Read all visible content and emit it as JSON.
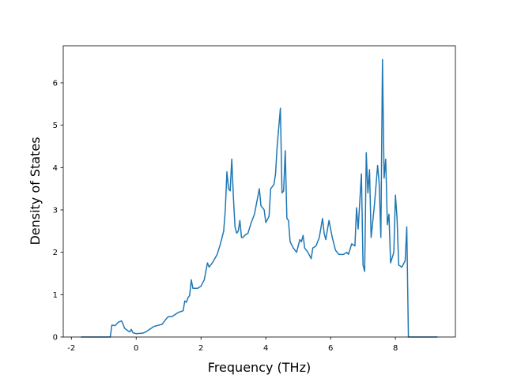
{
  "chart_data": {
    "type": "line",
    "x_label": "Frequency (THz)",
    "y_label": "Density of States",
    "x": [
      -1.7,
      -0.8,
      -0.75,
      -0.65,
      -0.55,
      -0.45,
      -0.35,
      -0.2,
      -0.15,
      -0.1,
      0,
      0.2,
      0.3,
      0.45,
      0.55,
      0.8,
      0.95,
      1.0,
      1.1,
      1.3,
      1.45,
      1.5,
      1.55,
      1.6,
      1.65,
      1.7,
      1.75,
      1.9,
      2.0,
      2.1,
      2.2,
      2.25,
      2.35,
      2.5,
      2.6,
      2.7,
      2.75,
      2.8,
      2.85,
      2.9,
      2.95,
      3.0,
      3.05,
      3.1,
      3.15,
      3.2,
      3.25,
      3.3,
      3.35,
      3.45,
      3.55,
      3.65,
      3.8,
      3.85,
      3.95,
      4.0,
      4.1,
      4.15,
      4.25,
      4.3,
      4.35,
      4.45,
      4.5,
      4.55,
      4.6,
      4.65,
      4.7,
      4.75,
      4.85,
      4.95,
      5.05,
      5.1,
      5.15,
      5.2,
      5.3,
      5.4,
      5.45,
      5.55,
      5.65,
      5.75,
      5.8,
      5.85,
      5.95,
      6.05,
      6.15,
      6.25,
      6.4,
      6.5,
      6.55,
      6.65,
      6.75,
      6.8,
      6.85,
      6.95,
      7.0,
      7.05,
      7.1,
      7.15,
      7.2,
      7.25,
      7.35,
      7.45,
      7.5,
      7.55,
      7.6,
      7.65,
      7.7,
      7.75,
      7.8,
      7.85,
      7.95,
      8.0,
      8.05,
      8.1,
      8.2,
      8.3,
      8.35,
      8.4,
      9.3
    ],
    "series": [
      {
        "color": "#1f77b4",
        "values": [
          0,
          0,
          0.28,
          0.27,
          0.35,
          0.38,
          0.2,
          0.12,
          0.18,
          0.1,
          0.08,
          0.09,
          0.12,
          0.2,
          0.25,
          0.3,
          0.45,
          0.48,
          0.48,
          0.58,
          0.62,
          0.85,
          0.82,
          0.93,
          0.98,
          1.35,
          1.15,
          1.15,
          1.2,
          1.35,
          1.75,
          1.65,
          1.75,
          1.95,
          2.2,
          2.5,
          3.0,
          3.9,
          3.5,
          3.45,
          4.2,
          3.3,
          2.6,
          2.45,
          2.5,
          2.75,
          2.35,
          2.35,
          2.4,
          2.45,
          2.7,
          2.9,
          3.5,
          3.1,
          3.0,
          2.7,
          2.85,
          3.5,
          3.6,
          3.85,
          4.5,
          5.4,
          3.4,
          3.45,
          4.4,
          2.8,
          2.75,
          2.25,
          2.1,
          2.0,
          2.3,
          2.25,
          2.4,
          2.1,
          2.0,
          1.85,
          2.1,
          2.15,
          2.35,
          2.8,
          2.45,
          2.3,
          2.75,
          2.35,
          2.05,
          1.95,
          1.95,
          2.0,
          1.95,
          2.2,
          2.15,
          3.05,
          2.55,
          3.85,
          1.7,
          1.55,
          4.35,
          3.4,
          3.95,
          2.35,
          3.1,
          4.05,
          3.6,
          2.35,
          6.55,
          3.75,
          4.2,
          2.65,
          2.9,
          1.75,
          2.0,
          3.35,
          2.8,
          1.7,
          1.65,
          1.8,
          2.6,
          0,
          0
        ]
      }
    ],
    "xlim": [
      -2.25,
      9.85
    ],
    "ylim": [
      0,
      6.875
    ],
    "xticks": [
      -2,
      0,
      2,
      4,
      6,
      8
    ],
    "yticks": [
      0,
      1,
      2,
      3,
      4,
      5,
      6
    ]
  }
}
